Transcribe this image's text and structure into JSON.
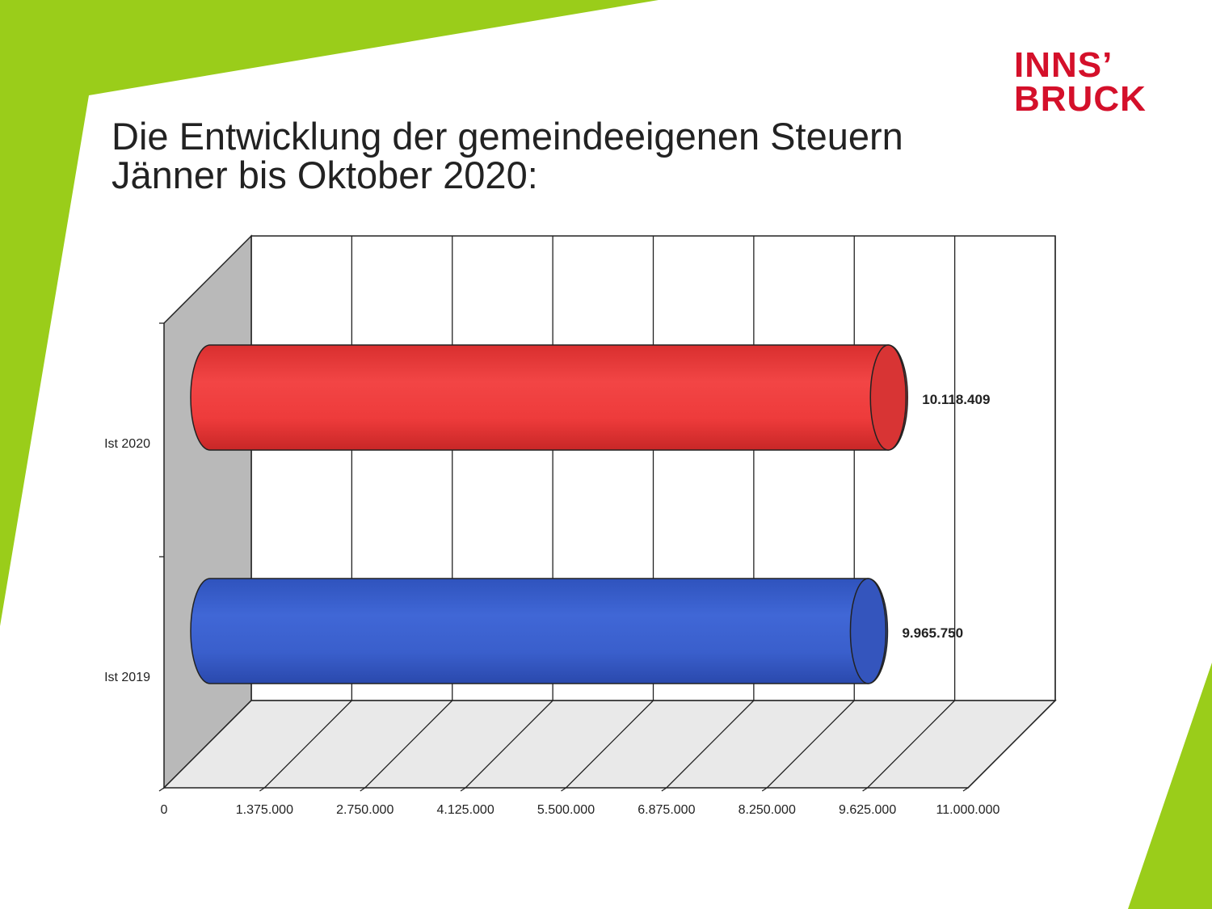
{
  "slide": {
    "title_line1": "Die Entwicklung der gemeindeeigenen Steuern",
    "title_line2": "Jänner bis Oktober 2020:",
    "logo_line1": "INNS’",
    "logo_line2": "BRUCK"
  },
  "colors": {
    "accent_green": "#9acd1a",
    "logo_red": "#d4102a",
    "bar_red": "#ee3b3b",
    "bar_blue": "#3a5fcc"
  },
  "chart_data": {
    "type": "bar",
    "orientation": "horizontal",
    "style": "3d-cylinder",
    "categories": [
      "Ist 2020",
      "Ist 2019"
    ],
    "values": [
      10118409,
      9965750
    ],
    "value_labels": [
      "10.118.409",
      "9.965.750"
    ],
    "xlim": [
      0,
      11000000
    ],
    "xticks": [
      "0",
      "1.375.000",
      "2.750.000",
      "4.125.000",
      "5.500.000",
      "6.875.000",
      "8.250.000",
      "9.625.000",
      "11.000.000"
    ],
    "grid": true,
    "legend": "none"
  }
}
